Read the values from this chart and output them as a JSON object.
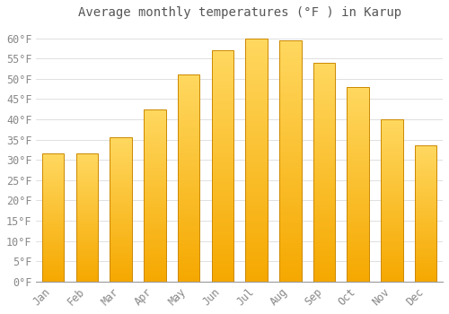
{
  "title": "Average monthly temperatures (°F ) in Karup",
  "months": [
    "Jan",
    "Feb",
    "Mar",
    "Apr",
    "May",
    "Jun",
    "Jul",
    "Aug",
    "Sep",
    "Oct",
    "Nov",
    "Dec"
  ],
  "values": [
    31.5,
    31.5,
    35.5,
    42.5,
    51.0,
    57.0,
    60.0,
    59.5,
    54.0,
    48.0,
    40.0,
    33.5
  ],
  "bar_color_bottom": "#F5A800",
  "bar_color_top": "#FFD860",
  "bar_edge_color": "#CC8800",
  "background_color": "#FFFFFF",
  "grid_color": "#E0E0E0",
  "text_color": "#888888",
  "ylim": [
    0,
    63
  ],
  "yticks": [
    0,
    5,
    10,
    15,
    20,
    25,
    30,
    35,
    40,
    45,
    50,
    55,
    60
  ],
  "title_fontsize": 10,
  "tick_fontsize": 8.5,
  "bar_width": 0.65
}
